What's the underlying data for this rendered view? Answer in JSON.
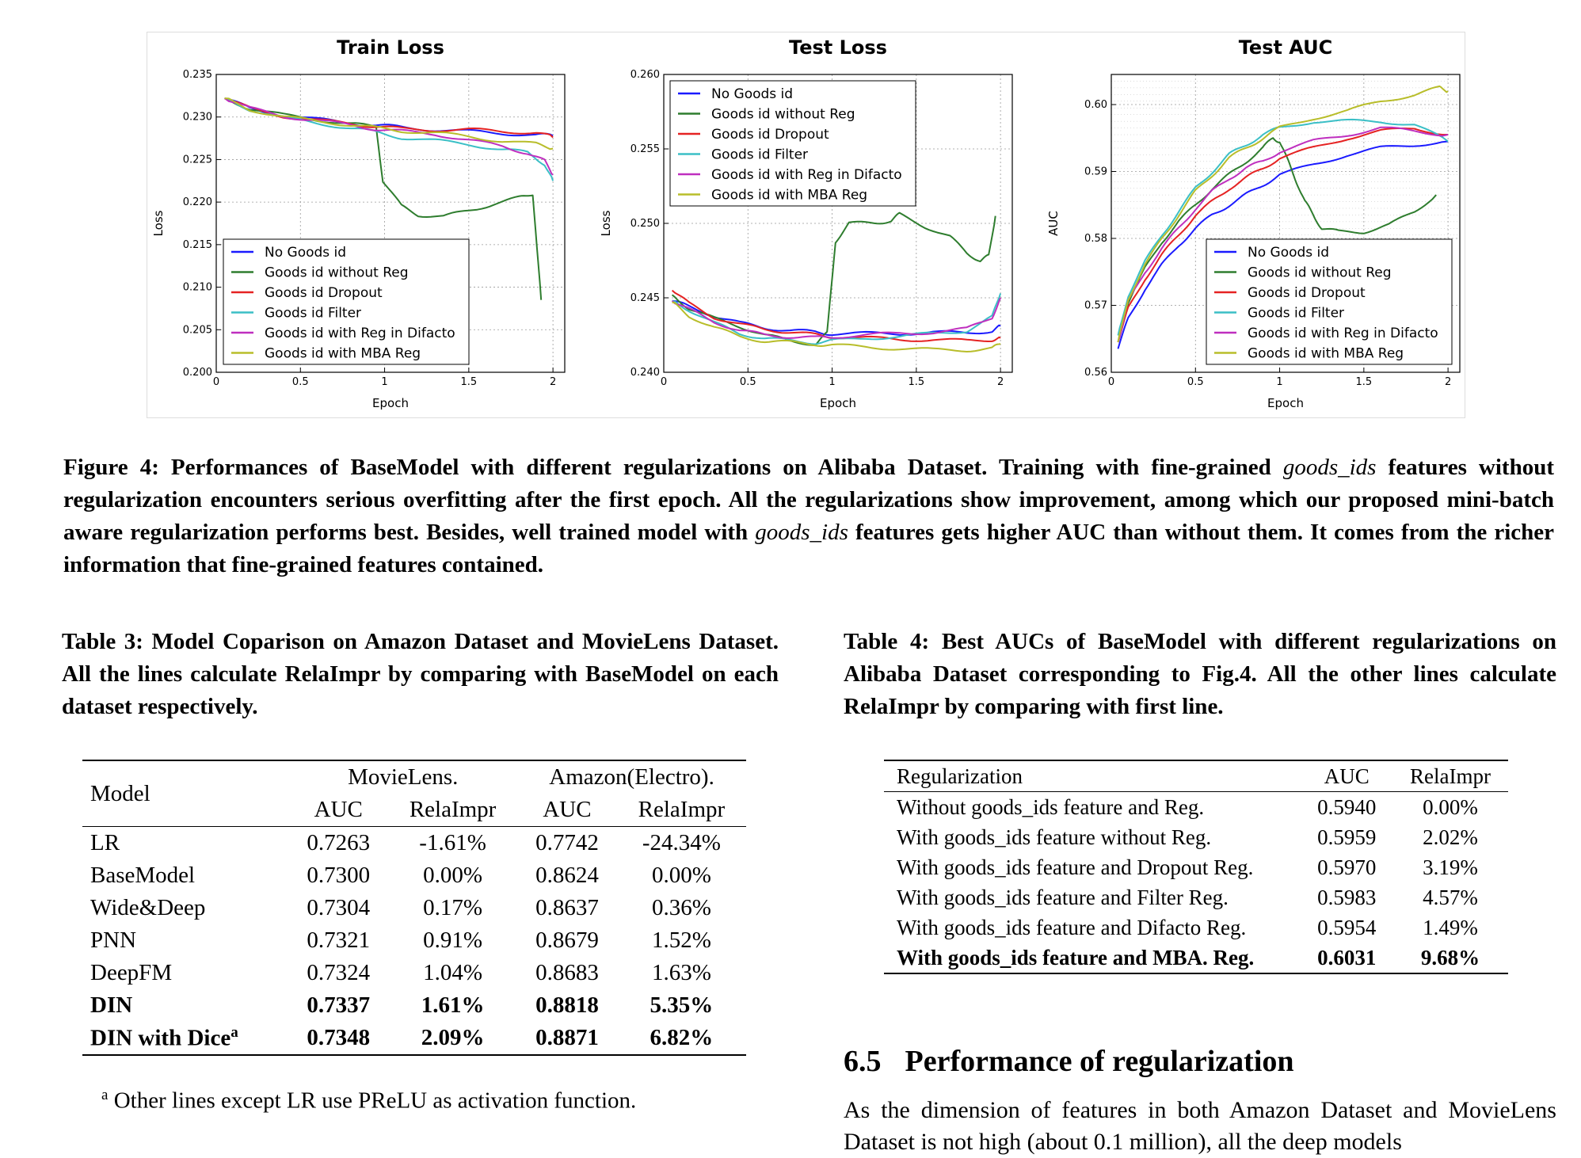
{
  "figure": {
    "caption_parts": [
      {
        "text": "Figure 4: Performances of BaseModel with different regularizations on Alibaba Dataset. Training with fine-grained ",
        "italic": false
      },
      {
        "text": "goods_ids",
        "italic": true
      },
      {
        "text": " features without regularization encounters serious overfitting after the first epoch. All the regularizations show improvement, among which our proposed mini-batch aware regularization performs best. Besides, well trained model with ",
        "italic": false
      },
      {
        "text": "goods_ids",
        "italic": true
      },
      {
        "text": " features gets higher AUC than without them. It comes from the richer information that fine-grained features contained.",
        "italic": false
      }
    ],
    "legend": [
      "No Goods id",
      "Goods id without Reg",
      "Goods id Dropout",
      "Goods id Filter",
      "Goods id with Reg in Difacto",
      "Goods id with MBA Reg"
    ],
    "series_colors": [
      "#1a1aff",
      "#2e7d2e",
      "#e52222",
      "#3bbfc6",
      "#bf2fbf",
      "#b8bd2a"
    ]
  },
  "chart_data": [
    {
      "type": "line",
      "title": "Train Loss",
      "xlabel": "Epoch",
      "ylabel": "Loss",
      "xlim": [
        0,
        2.07
      ],
      "ylim": [
        0.2,
        0.235
      ],
      "xticks": [
        "0",
        "0.5",
        "1",
        "1.5",
        "2"
      ],
      "yticks": [
        "0.200",
        "0.205",
        "0.210",
        "0.215",
        "0.220",
        "0.225",
        "0.230",
        "0.235"
      ],
      "legend_position": "lower-left",
      "grid": true,
      "series": [
        {
          "name": "No Goods id",
          "x": [
            0.05,
            0.2,
            0.4,
            0.6,
            0.8,
            0.95,
            1.1,
            1.3,
            1.5,
            1.7,
            1.9,
            2.0
          ],
          "y": [
            0.2322,
            0.231,
            0.2302,
            0.2297,
            0.2293,
            0.229,
            0.2288,
            0.2285,
            0.2283,
            0.2281,
            0.2279,
            0.2278
          ]
        },
        {
          "name": "Goods id without Reg",
          "x": [
            0.05,
            0.2,
            0.4,
            0.6,
            0.8,
            0.95,
            0.99,
            1.1,
            1.2,
            1.35,
            1.5,
            1.65,
            1.8,
            1.88,
            1.93
          ],
          "y": [
            0.2322,
            0.231,
            0.2302,
            0.2297,
            0.2292,
            0.2288,
            0.2225,
            0.2195,
            0.2185,
            0.2183,
            0.219,
            0.2198,
            0.2205,
            0.221,
            0.2085
          ]
        },
        {
          "name": "Goods id Dropout",
          "x": [
            0.05,
            0.2,
            0.4,
            0.6,
            0.8,
            0.95,
            1.1,
            1.3,
            1.5,
            1.7,
            1.9,
            2.0
          ],
          "y": [
            0.2322,
            0.231,
            0.2301,
            0.2296,
            0.2292,
            0.2289,
            0.2286,
            0.2285,
            0.2285,
            0.2283,
            0.2282,
            0.2276
          ]
        },
        {
          "name": "Goods id Filter",
          "x": [
            0.05,
            0.2,
            0.4,
            0.6,
            0.8,
            0.95,
            1.1,
            1.3,
            1.5,
            1.7,
            1.85,
            1.95,
            2.0
          ],
          "y": [
            0.2322,
            0.2309,
            0.2299,
            0.2293,
            0.2287,
            0.2282,
            0.2276,
            0.2272,
            0.2268,
            0.2262,
            0.2258,
            0.2245,
            0.2225
          ]
        },
        {
          "name": "Goods id with Reg in Difacto",
          "x": [
            0.05,
            0.2,
            0.4,
            0.6,
            0.8,
            0.95,
            1.1,
            1.3,
            1.5,
            1.7,
            1.85,
            1.95,
            2.0
          ],
          "y": [
            0.2322,
            0.231,
            0.2301,
            0.2296,
            0.229,
            0.2286,
            0.2283,
            0.228,
            0.2273,
            0.2265,
            0.2258,
            0.2248,
            0.2232
          ]
        },
        {
          "name": "Goods id with MBA Reg",
          "x": [
            0.05,
            0.2,
            0.4,
            0.6,
            0.8,
            0.95,
            1.1,
            1.3,
            1.5,
            1.7,
            1.9,
            2.0
          ],
          "y": [
            0.2322,
            0.2309,
            0.23,
            0.2295,
            0.2291,
            0.2287,
            0.2284,
            0.2281,
            0.2277,
            0.2272,
            0.2268,
            0.2263
          ]
        }
      ]
    },
    {
      "type": "line",
      "title": "Test Loss",
      "xlabel": "Epoch",
      "ylabel": "Loss",
      "xlim": [
        0,
        2.07
      ],
      "ylim": [
        0.24,
        0.26
      ],
      "xticks": [
        "0",
        "0.5",
        "1",
        "1.5",
        "2"
      ],
      "yticks": [
        "0.240",
        "0.245",
        "0.250",
        "0.255",
        "0.260"
      ],
      "legend_position": "upper-left",
      "grid": true,
      "series": [
        {
          "name": "No Goods id",
          "x": [
            0.05,
            0.15,
            0.3,
            0.45,
            0.6,
            0.75,
            0.9,
            1.0,
            1.2,
            1.4,
            1.6,
            1.8,
            1.95,
            2.0
          ],
          "y": [
            0.2448,
            0.2444,
            0.2438,
            0.2433,
            0.243,
            0.2428,
            0.2427,
            0.2426,
            0.2426,
            0.2426,
            0.2427,
            0.2426,
            0.2428,
            0.2431
          ]
        },
        {
          "name": "Goods id without Reg",
          "x": [
            0.05,
            0.15,
            0.3,
            0.45,
            0.6,
            0.75,
            0.9,
            0.97,
            1.02,
            1.1,
            1.25,
            1.35,
            1.4,
            1.55,
            1.7,
            1.8,
            1.88,
            1.93,
            1.97
          ],
          "y": [
            0.2452,
            0.2443,
            0.2436,
            0.2431,
            0.2425,
            0.2421,
            0.2419,
            0.2426,
            0.2488,
            0.25,
            0.25,
            0.2502,
            0.2506,
            0.2498,
            0.2491,
            0.248,
            0.2475,
            0.2478,
            0.2505
          ]
        },
        {
          "name": "Goods id Dropout",
          "x": [
            0.05,
            0.15,
            0.3,
            0.45,
            0.6,
            0.75,
            0.9,
            1.0,
            1.2,
            1.4,
            1.6,
            1.8,
            1.95,
            2.0
          ],
          "y": [
            0.2455,
            0.2446,
            0.2437,
            0.2432,
            0.2429,
            0.2427,
            0.2425,
            0.2424,
            0.2423,
            0.2422,
            0.2422,
            0.2421,
            0.2422,
            0.2423
          ]
        },
        {
          "name": "Goods id Filter",
          "x": [
            0.05,
            0.15,
            0.3,
            0.45,
            0.6,
            0.75,
            0.9,
            1.0,
            1.2,
            1.4,
            1.6,
            1.8,
            1.95,
            2.0
          ],
          "y": [
            0.2448,
            0.2442,
            0.2433,
            0.2426,
            0.2423,
            0.2421,
            0.242,
            0.2421,
            0.2423,
            0.2424,
            0.2426,
            0.2428,
            0.2437,
            0.2453
          ]
        },
        {
          "name": "Goods id with Reg in Difacto",
          "x": [
            0.05,
            0.15,
            0.3,
            0.45,
            0.6,
            0.75,
            0.9,
            1.0,
            1.2,
            1.4,
            1.6,
            1.8,
            1.95,
            2.0
          ],
          "y": [
            0.2448,
            0.2442,
            0.2434,
            0.2428,
            0.2425,
            0.2424,
            0.2423,
            0.2424,
            0.2425,
            0.2426,
            0.2427,
            0.2429,
            0.2437,
            0.245
          ]
        },
        {
          "name": "Goods id with MBA Reg",
          "x": [
            0.05,
            0.15,
            0.3,
            0.45,
            0.6,
            0.75,
            0.9,
            1.0,
            1.2,
            1.4,
            1.6,
            1.8,
            1.95,
            2.0
          ],
          "y": [
            0.2447,
            0.2438,
            0.243,
            0.2424,
            0.2421,
            0.242,
            0.2419,
            0.2418,
            0.2417,
            0.2416,
            0.2415,
            0.2415,
            0.2416,
            0.2419
          ]
        }
      ]
    },
    {
      "type": "line",
      "title": "Test   AUC",
      "xlabel": "Epoch",
      "ylabel": "AUC",
      "xlim": [
        0,
        2.07
      ],
      "ylim": [
        0.56,
        0.6045
      ],
      "xticks": [
        "0",
        "0.5",
        "1",
        "1.5",
        "2"
      ],
      "yticks": [
        "0.56",
        "0.57",
        "0.58",
        "0.59",
        "0.60"
      ],
      "legend_position": "lower-right",
      "grid": true,
      "series": [
        {
          "name": "No Goods id",
          "x": [
            0.04,
            0.1,
            0.2,
            0.3,
            0.4,
            0.5,
            0.6,
            0.7,
            0.8,
            0.9,
            1.0,
            1.2,
            1.4,
            1.6,
            1.8,
            2.0
          ],
          "y": [
            0.5635,
            0.568,
            0.5725,
            0.576,
            0.579,
            0.5815,
            0.5835,
            0.585,
            0.5865,
            0.588,
            0.5895,
            0.591,
            0.5925,
            0.5935,
            0.594,
            0.5945
          ]
        },
        {
          "name": "Goods id without Reg",
          "x": [
            0.04,
            0.1,
            0.2,
            0.3,
            0.4,
            0.5,
            0.6,
            0.7,
            0.8,
            0.9,
            0.96,
            1.0,
            1.05,
            1.1,
            1.15,
            1.2,
            1.25,
            1.35,
            1.5,
            1.65,
            1.8,
            1.93
          ],
          "y": [
            0.5645,
            0.5705,
            0.5755,
            0.5795,
            0.5825,
            0.585,
            0.5875,
            0.5895,
            0.5915,
            0.5935,
            0.595,
            0.5945,
            0.5915,
            0.5885,
            0.5855,
            0.5835,
            0.5815,
            0.581,
            0.581,
            0.582,
            0.584,
            0.5865
          ]
        },
        {
          "name": "Goods id Dropout",
          "x": [
            0.04,
            0.1,
            0.2,
            0.3,
            0.4,
            0.5,
            0.6,
            0.7,
            0.8,
            0.9,
            1.0,
            1.2,
            1.4,
            1.6,
            1.8,
            2.0
          ],
          "y": [
            0.5645,
            0.5695,
            0.574,
            0.5775,
            0.5805,
            0.5835,
            0.5855,
            0.5875,
            0.589,
            0.5905,
            0.592,
            0.5935,
            0.595,
            0.596,
            0.5965,
            0.5955
          ]
        },
        {
          "name": "Goods id Filter",
          "x": [
            0.04,
            0.1,
            0.2,
            0.3,
            0.4,
            0.5,
            0.6,
            0.7,
            0.8,
            0.9,
            1.0,
            1.2,
            1.4,
            1.6,
            1.8,
            2.0
          ],
          "y": [
            0.5655,
            0.5715,
            0.5765,
            0.5805,
            0.584,
            0.5875,
            0.59,
            0.5925,
            0.594,
            0.5955,
            0.5965,
            0.5975,
            0.5975,
            0.5975,
            0.597,
            0.5945
          ]
        },
        {
          "name": "Goods id with Reg in Difacto",
          "x": [
            0.04,
            0.1,
            0.2,
            0.3,
            0.4,
            0.5,
            0.6,
            0.7,
            0.8,
            0.9,
            1.0,
            1.2,
            1.4,
            1.6,
            1.8,
            2.0
          ],
          "y": [
            0.5645,
            0.5705,
            0.575,
            0.5785,
            0.5815,
            0.5845,
            0.587,
            0.589,
            0.5905,
            0.5915,
            0.593,
            0.5945,
            0.5955,
            0.5965,
            0.596,
            0.5955
          ]
        },
        {
          "name": "Goods id with MBA Reg",
          "x": [
            0.04,
            0.1,
            0.2,
            0.3,
            0.4,
            0.5,
            0.6,
            0.7,
            0.8,
            0.9,
            1.0,
            1.2,
            1.4,
            1.6,
            1.8,
            1.95,
            2.0
          ],
          "y": [
            0.5645,
            0.571,
            0.576,
            0.58,
            0.5835,
            0.587,
            0.5895,
            0.592,
            0.5935,
            0.595,
            0.5965,
            0.598,
            0.599,
            0.6005,
            0.6015,
            0.6025,
            0.602
          ]
        }
      ]
    }
  ],
  "table3": {
    "caption": "Table 3: Model Coparison on Amazon Dataset and MovieLens Dataset. All the lines calculate RelaImpr by comparing with BaseModel on each dataset respectively.",
    "header": {
      "model": "Model",
      "group1": "MovieLens.",
      "group2": "Amazon(Electro).",
      "auc": "AUC",
      "rela": "RelaImpr"
    },
    "rows": [
      {
        "model": "LR",
        "sup": "",
        "bold": false,
        "v": [
          "0.7263",
          "-1.61%",
          "0.7742",
          "-24.34%"
        ]
      },
      {
        "model": "BaseModel",
        "sup": "",
        "bold": false,
        "v": [
          "0.7300",
          "0.00%",
          "0.8624",
          "0.00%"
        ]
      },
      {
        "model": "Wide&Deep",
        "sup": "",
        "bold": false,
        "v": [
          "0.7304",
          "0.17%",
          "0.8637",
          "0.36%"
        ]
      },
      {
        "model": "PNN",
        "sup": "",
        "bold": false,
        "v": [
          "0.7321",
          "0.91%",
          "0.8679",
          "1.52%"
        ]
      },
      {
        "model": "DeepFM",
        "sup": "",
        "bold": false,
        "v": [
          "0.7324",
          "1.04%",
          "0.8683",
          "1.63%"
        ]
      },
      {
        "model": "DIN",
        "sup": "",
        "bold": true,
        "v": [
          "0.7337",
          "1.61%",
          "0.8818",
          "5.35%"
        ]
      },
      {
        "model": "DIN with Dice",
        "sup": "a",
        "bold": true,
        "v": [
          "0.7348",
          "2.09%",
          "0.8871",
          "6.82%"
        ]
      }
    ],
    "note_marker": "a",
    "note": "Other lines except LR use PReLU as activation function."
  },
  "table4": {
    "caption": "Table 4: Best AUCs of BaseModel with different regularizations on Alibaba Dataset corresponding to Fig.4. All the other lines calculate RelaImpr by comparing with first line.",
    "header": {
      "reg": "Regularization",
      "auc": "AUC",
      "rela": "RelaImpr"
    },
    "rows": [
      {
        "reg": "Without goods_ids feature and Reg.",
        "auc": "0.5940",
        "rela": "0.00%",
        "bold": false
      },
      {
        "reg": "With goods_ids feature without Reg.",
        "auc": "0.5959",
        "rela": "2.02%",
        "bold": false
      },
      {
        "reg": "With goods_ids feature and Dropout Reg.",
        "auc": "0.5970",
        "rela": "3.19%",
        "bold": false
      },
      {
        "reg": "With goods_ids feature and Filter Reg.",
        "auc": "0.5983",
        "rela": "4.57%",
        "bold": false
      },
      {
        "reg": "With goods_ids feature and Difacto Reg.",
        "auc": "0.5954",
        "rela": "1.49%",
        "bold": false
      },
      {
        "reg": "With goods_ids feature and MBA. Reg.",
        "auc": "0.6031",
        "rela": "9.68%",
        "bold": true
      }
    ]
  },
  "section": {
    "number": "6.5",
    "title": "Performance of regularization",
    "body": "As the dimension of features in both Amazon Dataset and MovieLens Dataset is not high (about 0.1 million), all the deep models"
  }
}
